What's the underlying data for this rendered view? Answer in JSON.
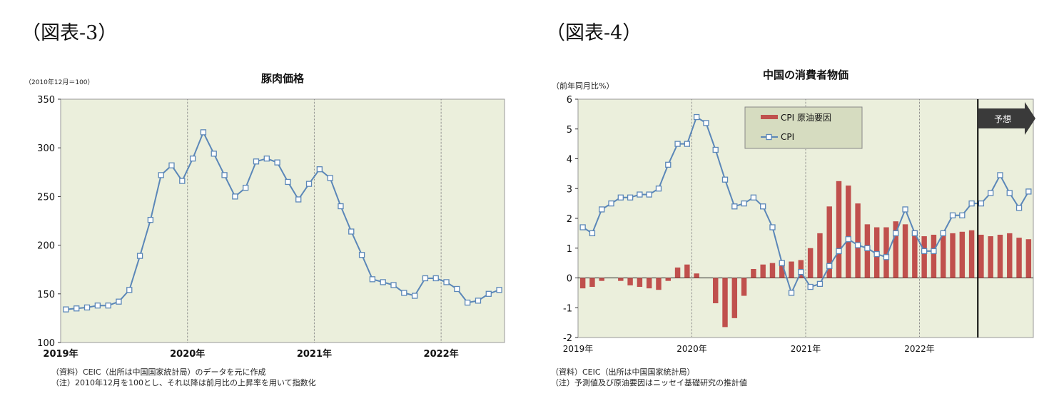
{
  "figure_left": {
    "label": "（図表-3）",
    "notes": [
      "（資料）CEIC（出所は中国国家統計局）のデータを元に作成",
      "（注）2010年12月を100とし、それ以降は前月比の上昇率を用いて指数化"
    ]
  },
  "figure_right": {
    "label": "（図表-4）",
    "notes": [
      "（資料）CEIC（出所は中国国家統計局）",
      "（注）予測値及び原油要因はニッセイ基礎研究の推計値"
    ],
    "forecast_label": "予想"
  },
  "colors": {
    "plot_bg": "#ebefdc",
    "line": "#5b87b8",
    "bar": "#c0504d",
    "grid": "#888888"
  },
  "chart_data": [
    {
      "type": "line",
      "title": "豚肉価格",
      "ylabel": "（2010年12月＝100）",
      "xlabel": "",
      "ylim": [
        100,
        350
      ],
      "yticks": [
        100,
        150,
        200,
        250,
        300,
        350
      ],
      "xlim": [
        0,
        42
      ],
      "x_tick_labels": [
        {
          "pos": 0,
          "label": "2019年"
        },
        {
          "pos": 12,
          "label": "2020年"
        },
        {
          "pos": 24,
          "label": "2021年"
        },
        {
          "pos": 36,
          "label": "2022年"
        }
      ],
      "grid": "vertical at year boundaries",
      "series": [
        {
          "name": "",
          "values": [
            134,
            135,
            136,
            138,
            138,
            142,
            154,
            189,
            226,
            272,
            282,
            266,
            289,
            316,
            294,
            272,
            250,
            259,
            286,
            289,
            285,
            265,
            247,
            263,
            278,
            269,
            240,
            214,
            190,
            165,
            162,
            159,
            151,
            148,
            166,
            166,
            162,
            155,
            141,
            143,
            150,
            154
          ]
        }
      ]
    },
    {
      "type": "bar+line",
      "title": "中国の消費者物価",
      "ylabel": "（前年同月比%）",
      "xlabel": "",
      "ylim": [
        -2,
        6
      ],
      "yticks": [
        -2,
        -1,
        0,
        1,
        2,
        3,
        4,
        5,
        6
      ],
      "xlim": [
        0,
        48
      ],
      "x_tick_labels": [
        {
          "pos": 0,
          "label": "2019年"
        },
        {
          "pos": 12,
          "label": "2020年"
        },
        {
          "pos": 24,
          "label": "2021年"
        },
        {
          "pos": 36,
          "label": "2022年"
        }
      ],
      "grid": "vertical at year boundaries",
      "forecast_start": 42,
      "legend_position": "top-center",
      "series": [
        {
          "name": "CPI 原油要因",
          "kind": "bar",
          "values": [
            -0.35,
            -0.3,
            -0.1,
            0,
            -0.1,
            -0.25,
            -0.3,
            -0.35,
            -0.4,
            -0.1,
            0.35,
            0.45,
            0.15,
            0,
            -0.85,
            -1.65,
            -1.35,
            -0.6,
            0.3,
            0.45,
            0.5,
            0.55,
            0.55,
            0.6,
            1.0,
            1.5,
            2.4,
            3.25,
            3.1,
            2.5,
            1.8,
            1.7,
            1.7,
            1.9,
            1.8,
            1.6,
            1.4,
            1.45,
            1.45,
            1.5,
            1.55,
            1.6,
            1.45,
            1.4,
            1.45,
            1.5,
            1.35,
            1.3
          ]
        },
        {
          "name": "CPI",
          "kind": "line",
          "values": [
            1.7,
            1.5,
            2.3,
            2.5,
            2.7,
            2.7,
            2.8,
            2.8,
            3.0,
            3.8,
            4.5,
            4.5,
            5.4,
            5.2,
            4.3,
            3.3,
            2.4,
            2.5,
            2.7,
            2.4,
            1.7,
            0.5,
            -0.5,
            0.2,
            -0.3,
            -0.2,
            0.4,
            0.9,
            1.3,
            1.1,
            1.0,
            0.8,
            0.7,
            1.5,
            2.3,
            1.5,
            0.9,
            0.9,
            1.5,
            2.1,
            2.1,
            2.5,
            2.5,
            2.85,
            3.45,
            2.85,
            2.35,
            2.9
          ]
        }
      ]
    }
  ]
}
